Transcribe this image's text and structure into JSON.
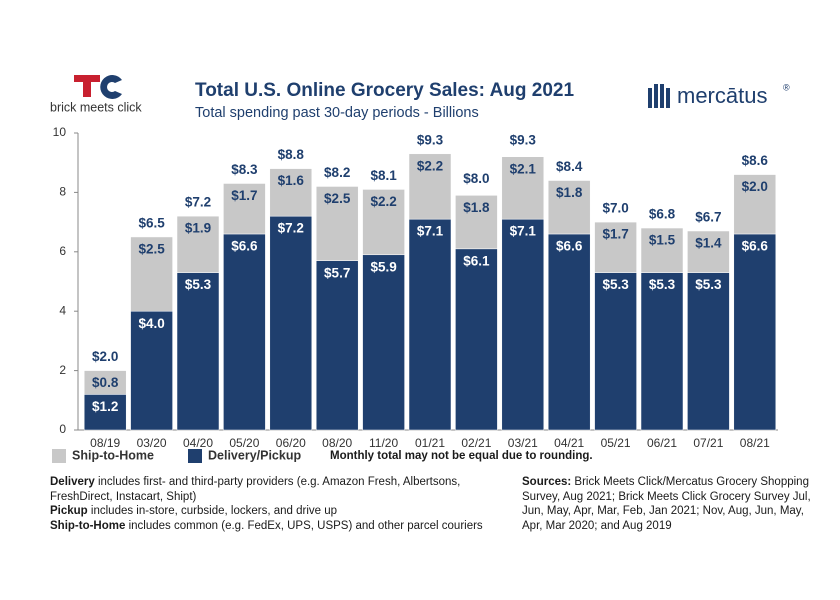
{
  "chart_data": {
    "type": "stacked_bar",
    "title": "Total U.S. Online Grocery Sales: Aug 2021",
    "subtitle": "Total spending past 30-day periods - Billions",
    "categories": [
      "08/19",
      "03/20",
      "04/20",
      "05/20",
      "06/20",
      "08/20",
      "11/20",
      "01/21",
      "02/21",
      "03/21",
      "04/21",
      "05/21",
      "06/21",
      "07/21",
      "08/21"
    ],
    "series": [
      {
        "name": "Delivery/Pickup",
        "color": "#1f3f6e",
        "label_color": "#ffffff",
        "values": [
          1.2,
          4.0,
          5.3,
          6.6,
          7.2,
          5.7,
          5.9,
          7.1,
          6.1,
          7.1,
          6.6,
          5.3,
          5.3,
          5.3,
          6.6
        ],
        "value_labels": [
          "$1.2",
          "$4.0",
          "$5.3",
          "$6.6",
          "$7.2",
          "$5.7",
          "$5.9",
          "$7.1",
          "$6.1",
          "$7.1",
          "$6.6",
          "$5.3",
          "$5.3",
          "$5.3",
          "$6.6"
        ]
      },
      {
        "name": "Ship-to-Home",
        "color": "#c8c8c8",
        "label_color": "#1f3f6e",
        "values": [
          0.8,
          2.5,
          1.9,
          1.7,
          1.6,
          2.5,
          2.2,
          2.2,
          1.8,
          2.1,
          1.8,
          1.7,
          1.5,
          1.4,
          2.0
        ],
        "value_labels": [
          "$0.8",
          "$2.5",
          "$1.9",
          "$1.7",
          "$1.6",
          "$2.5",
          "$2.2",
          "$2.2",
          "$1.8",
          "$2.1",
          "$1.8",
          "$1.7",
          "$1.5",
          "$1.4",
          "$2.0"
        ]
      }
    ],
    "totals": [
      2.0,
      6.5,
      7.2,
      8.3,
      8.8,
      8.2,
      8.1,
      9.3,
      8.0,
      9.3,
      8.4,
      7.0,
      6.8,
      6.7,
      8.6
    ],
    "total_labels": [
      "$2.0",
      "$6.5",
      "$7.2",
      "$8.3",
      "$8.8",
      "$8.2",
      "$8.1",
      "$9.3",
      "$8.0",
      "$9.3",
      "$8.4",
      "$7.0",
      "$6.8",
      "$6.7",
      "$8.6"
    ],
    "ylim": [
      0,
      10
    ],
    "yticks": [
      0,
      2,
      4,
      6,
      8,
      10
    ],
    "note": "Monthly total may not be equal due to rounding.",
    "logo_left": "brick meets click",
    "logo_right": "mercātus",
    "logo_right_mark": "®",
    "footnotes": [
      {
        "term": "Delivery",
        "text": " includes first- and third-party providers (e.g. Amazon Fresh, Albertsons, FreshDirect, Instacart, Shipt)"
      },
      {
        "term": "Pickup",
        "text": " includes in-store, curbside, lockers, and drive up"
      },
      {
        "term": "Ship-to-Home",
        "text": " includes common (e.g. FedEx, UPS, USPS) and other parcel couriers"
      }
    ],
    "sources": {
      "term": "Sources:",
      "text": " Brick Meets Click/Mercatus Grocery Shopping Survey, Aug 2021; Brick Meets Click Grocery Survey Jul, Jun, May, Apr, Mar, Feb, Jan 2021; Nov, Aug, Jun, May, Apr, Mar 2020; and Aug 2019"
    }
  }
}
